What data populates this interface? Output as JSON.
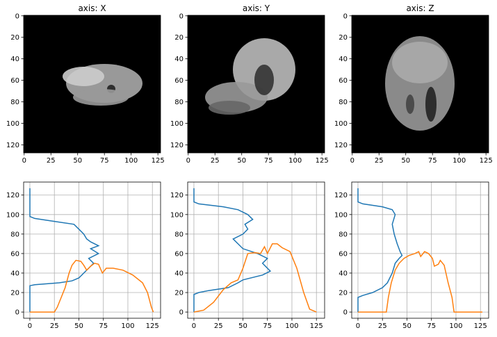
{
  "chart_data": [
    {
      "type": "image",
      "title": "axis: X",
      "xlim": [
        -0.5,
        127.5
      ],
      "ylim": [
        127.5,
        -0.5
      ],
      "xticks": [
        0,
        25,
        50,
        75,
        100,
        125
      ],
      "yticks": [
        0,
        20,
        40,
        60,
        80,
        100,
        120
      ]
    },
    {
      "type": "image",
      "title": "axis: Y",
      "xlim": [
        -0.5,
        127.5
      ],
      "ylim": [
        127.5,
        -0.5
      ],
      "xticks": [
        0,
        25,
        50,
        75,
        100,
        125
      ],
      "yticks": [
        0,
        20,
        40,
        60,
        80,
        100,
        120
      ]
    },
    {
      "type": "image",
      "title": "axis: Z",
      "xlim": [
        -0.5,
        127.5
      ],
      "ylim": [
        127.5,
        -0.5
      ],
      "xticks": [
        0,
        25,
        50,
        75,
        100,
        125
      ],
      "yticks": [
        0,
        20,
        40,
        60,
        80,
        100,
        120
      ]
    },
    {
      "type": "line",
      "xlim": [
        -6.35,
        133.35
      ],
      "ylim": [
        -6.35,
        133.35
      ],
      "xticks": [
        0,
        25,
        50,
        75,
        100,
        125
      ],
      "yticks": [
        0,
        20,
        40,
        60,
        80,
        100,
        120
      ],
      "grid": true,
      "series": [
        {
          "color": "#1f77b4",
          "x": [
            0,
            0,
            5,
            30,
            43,
            50,
            55,
            60,
            65,
            60,
            70,
            62,
            70,
            62,
            58,
            55,
            50,
            45,
            25,
            5,
            0,
            0
          ],
          "y": [
            0,
            27,
            28,
            30,
            32,
            35,
            40,
            45,
            50,
            55,
            60,
            65,
            68,
            72,
            75,
            80,
            85,
            90,
            93,
            96,
            98,
            127
          ]
        },
        {
          "color": "#ff7f0e",
          "x": [
            0,
            25,
            28,
            32,
            36,
            40,
            43,
            47,
            52,
            55,
            58,
            62,
            66,
            70,
            74,
            78,
            85,
            95,
            105,
            115,
            120,
            124,
            126
          ],
          "y": [
            0,
            0,
            5,
            15,
            25,
            40,
            48,
            53,
            52,
            48,
            43,
            47,
            50,
            49,
            40,
            45,
            45,
            43,
            38,
            30,
            20,
            5,
            0
          ]
        }
      ]
    },
    {
      "type": "line",
      "xlim": [
        -6.35,
        133.35
      ],
      "ylim": [
        -6.35,
        133.35
      ],
      "xticks": [
        0,
        25,
        50,
        75,
        100,
        125
      ],
      "yticks": [
        0,
        20,
        40,
        60,
        80,
        100,
        120
      ],
      "grid": true,
      "series": [
        {
          "color": "#1f77b4",
          "x": [
            0,
            0,
            5,
            15,
            35,
            45,
            50,
            70,
            78,
            75,
            70,
            75,
            65,
            50,
            45,
            40,
            50,
            55,
            52,
            60,
            55,
            45,
            30,
            5,
            0,
            0
          ],
          "y": [
            0,
            18,
            20,
            22,
            25,
            30,
            33,
            38,
            42,
            45,
            50,
            55,
            60,
            65,
            70,
            75,
            80,
            85,
            90,
            95,
            100,
            105,
            108,
            111,
            113,
            127
          ]
        },
        {
          "color": "#ff7f0e",
          "x": [
            0,
            10,
            20,
            30,
            38,
            45,
            50,
            55,
            62,
            68,
            72,
            75,
            80,
            85,
            90,
            98,
            105,
            112,
            118,
            125
          ],
          "y": [
            0,
            2,
            10,
            23,
            30,
            33,
            45,
            60,
            61,
            60,
            67,
            60,
            70,
            70,
            66,
            62,
            45,
            20,
            3,
            0
          ]
        }
      ]
    },
    {
      "type": "line",
      "xlim": [
        -6.35,
        133.35
      ],
      "ylim": [
        -6.35,
        133.35
      ],
      "xticks": [
        0,
        25,
        50,
        75,
        100,
        125
      ],
      "yticks": [
        0,
        20,
        40,
        60,
        80,
        100,
        120
      ],
      "grid": true,
      "series": [
        {
          "color": "#1f77b4",
          "x": [
            0,
            0,
            5,
            15,
            25,
            30,
            35,
            38,
            42,
            45,
            43,
            40,
            37,
            35,
            38,
            35,
            25,
            5,
            0,
            0
          ],
          "y": [
            0,
            15,
            17,
            20,
            25,
            30,
            40,
            50,
            55,
            58,
            62,
            70,
            80,
            90,
            100,
            105,
            108,
            111,
            113,
            127
          ]
        },
        {
          "color": "#ff7f0e",
          "x": [
            0,
            29,
            31,
            34,
            38,
            42,
            47,
            52,
            58,
            62,
            64,
            68,
            72,
            76,
            78,
            82,
            84,
            88,
            92,
            96,
            98,
            127
          ],
          "y": [
            0,
            0,
            15,
            30,
            43,
            50,
            55,
            58,
            60,
            62,
            57,
            62,
            60,
            55,
            47,
            49,
            53,
            48,
            30,
            15,
            0,
            0
          ]
        }
      ]
    }
  ]
}
